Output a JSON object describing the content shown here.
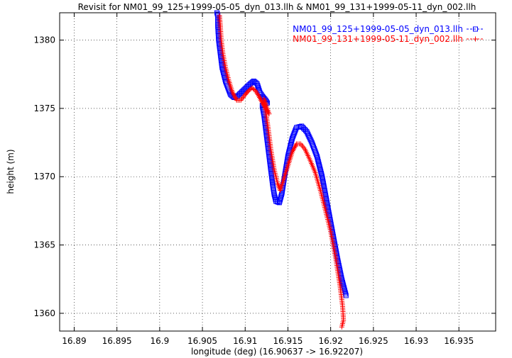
{
  "chart_data": {
    "type": "scatter",
    "title": "Revisit for NM01_99_125+1999-05-05_dyn_013.llh & NM01_99_131+1999-05-11_dyn_002.llh",
    "xlabel": "longitude (deg) (16.90637 -> 16.92207)",
    "ylabel": "height (m)",
    "xlim": [
      16.8883,
      16.9393
    ],
    "ylim": [
      1358.7,
      1382.0
    ],
    "x_ticks": [
      16.89,
      16.895,
      16.9,
      16.905,
      16.91,
      16.915,
      16.92,
      16.925,
      16.93,
      16.935
    ],
    "x_tick_labels": [
      "16.89",
      "16.895",
      "16.9",
      "16.905",
      "16.91",
      "16.915",
      "16.92",
      "16.925",
      "16.93",
      "16.935"
    ],
    "y_ticks": [
      1360,
      1365,
      1370,
      1375,
      1380
    ],
    "y_tick_labels": [
      "1360",
      "1365",
      "1370",
      "1375",
      "1380"
    ],
    "grid": true,
    "legend_position": "top-right",
    "series": [
      {
        "name": "NM01_99_125+1999-05-05_dyn_013.llh",
        "legend_style": "-□-",
        "color": "#0000ff",
        "marker": "square",
        "points": [
          [
            16.9067,
            1382.0
          ],
          [
            16.9068,
            1381.8
          ],
          [
            16.9068,
            1381.0
          ],
          [
            16.9069,
            1380.0
          ],
          [
            16.9071,
            1379.0
          ],
          [
            16.9073,
            1378.0
          ],
          [
            16.9077,
            1377.0
          ],
          [
            16.908,
            1376.5
          ],
          [
            16.9083,
            1376.0
          ],
          [
            16.9087,
            1375.8
          ],
          [
            16.9091,
            1375.9
          ],
          [
            16.9096,
            1376.2
          ],
          [
            16.9101,
            1376.5
          ],
          [
            16.9106,
            1376.8
          ],
          [
            16.911,
            1377.0
          ],
          [
            16.9114,
            1376.8
          ],
          [
            16.9117,
            1376.2
          ],
          [
            16.912,
            1375.9
          ],
          [
            16.9124,
            1375.6
          ],
          [
            16.9126,
            1375.4
          ],
          [
            16.912,
            1375.2
          ],
          [
            16.9122,
            1374.5
          ],
          [
            16.9124,
            1373.5
          ],
          [
            16.9126,
            1372.5
          ],
          [
            16.9128,
            1371.5
          ],
          [
            16.913,
            1370.5
          ],
          [
            16.9132,
            1369.5
          ],
          [
            16.9134,
            1368.7
          ],
          [
            16.9136,
            1368.2
          ],
          [
            16.914,
            1368.1
          ],
          [
            16.9143,
            1368.8
          ],
          [
            16.9146,
            1370.0
          ],
          [
            16.915,
            1371.5
          ],
          [
            16.9155,
            1372.8
          ],
          [
            16.916,
            1373.6
          ],
          [
            16.9166,
            1373.7
          ],
          [
            16.9172,
            1373.3
          ],
          [
            16.9178,
            1372.5
          ],
          [
            16.9184,
            1371.5
          ],
          [
            16.919,
            1370.0
          ],
          [
            16.9196,
            1368.0
          ],
          [
            16.9202,
            1366.0
          ],
          [
            16.9208,
            1364.0
          ],
          [
            16.9213,
            1362.5
          ],
          [
            16.9218,
            1361.3
          ]
        ]
      },
      {
        "name": "NM01_99_131+1999-05-11_dyn_002.llh",
        "legend_style": "-+-",
        "color": "#ff0000",
        "marker": "plus",
        "points": [
          [
            16.907,
            1381.8
          ],
          [
            16.9071,
            1381.0
          ],
          [
            16.9072,
            1380.0
          ],
          [
            16.9074,
            1379.0
          ],
          [
            16.9077,
            1378.0
          ],
          [
            16.9081,
            1377.0
          ],
          [
            16.9085,
            1376.2
          ],
          [
            16.909,
            1375.6
          ],
          [
            16.9095,
            1375.6
          ],
          [
            16.91,
            1376.0
          ],
          [
            16.9104,
            1376.3
          ],
          [
            16.9108,
            1376.5
          ],
          [
            16.9112,
            1376.3
          ],
          [
            16.9116,
            1375.9
          ],
          [
            16.912,
            1375.4
          ],
          [
            16.9124,
            1375.0
          ],
          [
            16.9128,
            1374.6
          ],
          [
            16.9122,
            1375.7
          ],
          [
            16.9124,
            1374.8
          ],
          [
            16.9127,
            1373.5
          ],
          [
            16.913,
            1372.0
          ],
          [
            16.9134,
            1370.5
          ],
          [
            16.9138,
            1369.5
          ],
          [
            16.9141,
            1369.0
          ],
          [
            16.9145,
            1369.8
          ],
          [
            16.915,
            1370.8
          ],
          [
            16.9155,
            1371.8
          ],
          [
            16.916,
            1372.4
          ],
          [
            16.9165,
            1372.4
          ],
          [
            16.917,
            1372.0
          ],
          [
            16.9176,
            1371.2
          ],
          [
            16.9182,
            1370.3
          ],
          [
            16.9188,
            1369.0
          ],
          [
            16.9194,
            1367.5
          ],
          [
            16.92,
            1366.0
          ],
          [
            16.9206,
            1364.0
          ],
          [
            16.9211,
            1362.0
          ],
          [
            16.9214,
            1360.5
          ],
          [
            16.9215,
            1359.5
          ],
          [
            16.9213,
            1359.0
          ]
        ]
      }
    ]
  }
}
